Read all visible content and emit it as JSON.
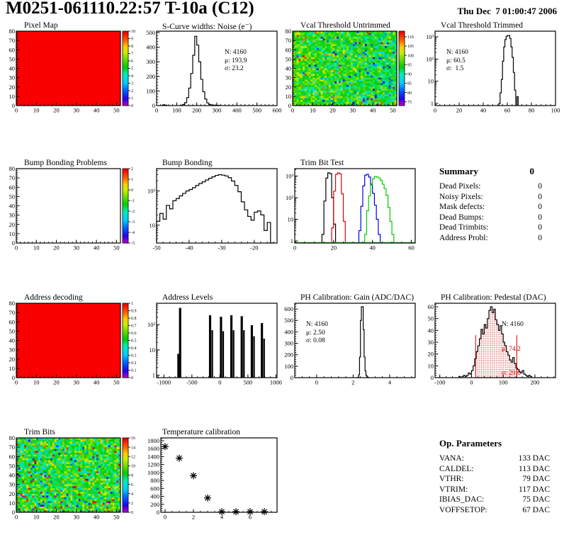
{
  "page": {
    "title": "M0251-061110.22:57 T-10a (C12)",
    "date": "Thu Dec  7 01:00:47 2006"
  },
  "summary": {
    "title": "Summary",
    "value": "0",
    "rows": [
      {
        "label": "Dead Pixels:",
        "value": "0"
      },
      {
        "label": "Noisy Pixels:",
        "value": "0"
      },
      {
        "label": "Mask defects:",
        "value": "0"
      },
      {
        "label": "Dead Bumps:",
        "value": "0"
      },
      {
        "label": "Dead Trimbits:",
        "value": "0"
      },
      {
        "label": "Address Probl:",
        "value": "0"
      }
    ]
  },
  "op_params": {
    "title": "Op. Parameters",
    "rows": [
      {
        "label": "VANA:",
        "value": "133 DAC"
      },
      {
        "label": "CALDEL:",
        "value": "113 DAC"
      },
      {
        "label": "VTHR:",
        "value": "79 DAC"
      },
      {
        "label": "VTRIM:",
        "value": "117 DAC"
      },
      {
        "label": "IBIAS_DAC:",
        "value": "75 DAC"
      },
      {
        "label": "VOFFSETOP:",
        "value": "67 DAC"
      }
    ]
  },
  "chart_data": [
    {
      "title": "Pixel Map",
      "type": "heatmap",
      "x_range": [
        0,
        52
      ],
      "y_range": [
        0,
        80
      ],
      "xticks": [
        0,
        10,
        20,
        30,
        40,
        50
      ],
      "xminor": 2,
      "yticks": [
        0,
        10,
        20,
        30,
        40,
        50,
        60,
        70,
        80
      ],
      "yminor": 2,
      "uniform_color": "#fb0000",
      "colorbar": {
        "range": [
          0,
          10
        ],
        "ticks": [
          0,
          1,
          2,
          3,
          4,
          5,
          6,
          7,
          8,
          9,
          10
        ]
      }
    },
    {
      "title": "S-Curve widths: Noise (e⁻)",
      "type": "hist",
      "x_range": [
        0,
        600
      ],
      "y_range": [
        0,
        510
      ],
      "xticks": [
        0,
        100,
        200,
        300,
        400,
        500,
        600
      ],
      "xminor": 20,
      "yticks": [
        0,
        100,
        200,
        300,
        400,
        500
      ],
      "yminor": 20,
      "bin_width": 10,
      "bins": [
        [
          30,
          5
        ],
        [
          40,
          3
        ],
        [
          120,
          2
        ],
        [
          130,
          8
        ],
        [
          140,
          20
        ],
        [
          150,
          55
        ],
        [
          160,
          120
        ],
        [
          170,
          220
        ],
        [
          180,
          345
        ],
        [
          190,
          475
        ],
        [
          200,
          415
        ],
        [
          210,
          300
        ],
        [
          220,
          180
        ],
        [
          230,
          95
        ],
        [
          240,
          45
        ],
        [
          250,
          18
        ],
        [
          260,
          8
        ],
        [
          270,
          4
        ],
        [
          280,
          2
        ],
        [
          290,
          3
        ],
        [
          300,
          2
        ],
        [
          310,
          1
        ]
      ],
      "stats": [
        "N: 4160",
        "μ: 193.9",
        "σ: 23.2"
      ]
    },
    {
      "title": "Vcal Threshold Untrimmed",
      "type": "heatmap",
      "x_range": [
        0,
        52
      ],
      "y_range": [
        0,
        80
      ],
      "xticks": [
        0,
        10,
        20,
        30,
        40,
        50
      ],
      "xminor": 2,
      "yticks": [
        0,
        10,
        20,
        30,
        40,
        50,
        60,
        70,
        80
      ],
      "yminor": 2,
      "noise": {
        "seed": 7,
        "base": 96,
        "sd": 3.5,
        "xslope": -3,
        "p_low": 0.05,
        "low": [
          -20,
          -8
        ],
        "grad_low": true,
        "p_high": 0.035,
        "high": [
          6,
          14
        ],
        "range": [
          73,
          113
        ]
      },
      "colorbar": {
        "range": [
          73,
          113
        ],
        "ticks": [
          75,
          80,
          85,
          90,
          95,
          100,
          105,
          110
        ]
      }
    },
    {
      "title": "Vcal Threshold Trimmed",
      "type": "hist",
      "x_range": [
        0,
        100
      ],
      "ylog": [
        0.8,
        1800
      ],
      "xticks": [
        0,
        20,
        40,
        60,
        80,
        100
      ],
      "xminor": 4,
      "bin_width": 1,
      "bins": [
        [
          53,
          1
        ],
        [
          54,
          3
        ],
        [
          55,
          12
        ],
        [
          56,
          80
        ],
        [
          57,
          350
        ],
        [
          58,
          750
        ],
        [
          59,
          1050
        ],
        [
          60,
          1150
        ],
        [
          61,
          1150
        ],
        [
          62,
          850
        ],
        [
          63,
          350
        ],
        [
          64,
          120
        ],
        [
          65,
          25
        ],
        [
          66,
          4
        ],
        [
          68,
          2
        ]
      ],
      "stats": [
        "N: 4160",
        "μ: 60.5",
        "σ:  1.5"
      ]
    },
    {
      "title": "Bump Bonding Problems",
      "type": "heatmap",
      "x_range": [
        0,
        52
      ],
      "y_range": [
        0,
        80
      ],
      "xticks": [
        0,
        10,
        20,
        30,
        40,
        50
      ],
      "xminor": 2,
      "yticks": [
        0,
        10,
        20,
        30,
        40,
        50,
        60,
        70,
        80
      ],
      "yminor": 2,
      "uniform_color": "#ffffff",
      "colorbar": {
        "range": [
          -5,
          2
        ],
        "ticks": [
          -5,
          -4,
          -3,
          -2,
          -1,
          0,
          1,
          2
        ]
      }
    },
    {
      "title": "Bump Bonding",
      "type": "hist",
      "x_range": [
        -50,
        -13
      ],
      "ylog": [
        3,
        450
      ],
      "xticks": [
        -50,
        -40,
        -30,
        -20
      ],
      "xminor": 2,
      "bin_width": 1,
      "bins": [
        [
          -50,
          13
        ],
        [
          -49,
          22
        ],
        [
          -48,
          15
        ],
        [
          -47,
          38
        ],
        [
          -46,
          30
        ],
        [
          -45,
          52
        ],
        [
          -44,
          60
        ],
        [
          -43,
          72
        ],
        [
          -42,
          85
        ],
        [
          -41,
          100
        ],
        [
          -40,
          110
        ],
        [
          -39,
          125
        ],
        [
          -38,
          145
        ],
        [
          -37,
          165
        ],
        [
          -36,
          185
        ],
        [
          -35,
          210
        ],
        [
          -34,
          235
        ],
        [
          -33,
          260
        ],
        [
          -32,
          285
        ],
        [
          -31,
          300
        ],
        [
          -30,
          290
        ],
        [
          -29,
          275
        ],
        [
          -28,
          245
        ],
        [
          -27,
          195
        ],
        [
          -26,
          145
        ],
        [
          -25,
          95
        ],
        [
          -24,
          48
        ],
        [
          -23,
          28
        ],
        [
          -22,
          18
        ],
        [
          -21,
          14
        ],
        [
          -20,
          24
        ],
        [
          -19,
          26
        ],
        [
          -18,
          20
        ],
        [
          -17,
          7
        ],
        [
          -16,
          12
        ],
        [
          -15,
          3
        ]
      ]
    },
    {
      "title": "Trim Bit Test",
      "type": "hist",
      "x_range": [
        0,
        62
      ],
      "ylog": [
        0.8,
        2200
      ],
      "xticks": [
        0,
        20,
        40,
        60
      ],
      "xminor": 5,
      "bin_width": 1,
      "series": [
        {
          "color": "#000000",
          "bins": [
            [
              14,
              2
            ],
            [
              15,
              70
            ],
            [
              16,
              800
            ],
            [
              17,
              1400
            ],
            [
              18,
              1300
            ],
            [
              19,
              100
            ],
            [
              20,
              6
            ]
          ]
        },
        {
          "color": "#e60000",
          "bins": [
            [
              19,
              4
            ],
            [
              20,
              200
            ],
            [
              21,
              1200
            ],
            [
              22,
              1400
            ],
            [
              23,
              1250
            ],
            [
              24,
              150
            ],
            [
              25,
              8
            ]
          ]
        },
        {
          "color": "#0000e6",
          "bins": [
            [
              33,
              3
            ],
            [
              34,
              40
            ],
            [
              35,
              350
            ],
            [
              36,
              1100
            ],
            [
              37,
              1200
            ],
            [
              38,
              900
            ],
            [
              39,
              420
            ],
            [
              40,
              160
            ],
            [
              41,
              45
            ],
            [
              42,
              10
            ],
            [
              43,
              2
            ]
          ]
        },
        {
          "color": "#00cc00",
          "baseline": true,
          "bins": [
            [
              36,
              2
            ],
            [
              37,
              25
            ],
            [
              38,
              120
            ],
            [
              39,
              380
            ],
            [
              40,
              750
            ],
            [
              41,
              950
            ],
            [
              42,
              900
            ],
            [
              43,
              820
            ],
            [
              44,
              640
            ],
            [
              45,
              420
            ],
            [
              46,
              260
            ],
            [
              47,
              130
            ],
            [
              48,
              35
            ],
            [
              49,
              8
            ],
            [
              50,
              2
            ]
          ]
        }
      ]
    },
    {
      "title": "Address decoding",
      "type": "heatmap",
      "x_range": [
        0,
        52
      ],
      "y_range": [
        0,
        80
      ],
      "xticks": [
        0,
        10,
        20,
        30,
        40,
        50
      ],
      "xminor": 2,
      "yticks": [
        0,
        10,
        20,
        30,
        40,
        50,
        60,
        70,
        80
      ],
      "yminor": 2,
      "uniform_color": "#fb0000",
      "colorbar": {
        "range": [
          0,
          1
        ],
        "ticks": [
          0,
          0.1,
          0.2,
          0.3,
          0.4,
          0.5,
          0.6,
          0.7,
          0.8,
          0.9,
          1
        ]
      }
    },
    {
      "title": "Address Levels",
      "type": "bars",
      "x_range": [
        -1130,
        1020
      ],
      "ylog": [
        0.8,
        700
      ],
      "xticks": [
        -1000,
        -500,
        0,
        500,
        1000
      ],
      "xminor": 100,
      "bars": [
        [
          -760,
          30,
          7
        ],
        [
          -730,
          40,
          460
        ],
        [
          -195,
          40,
          235
        ],
        [
          -150,
          28,
          60
        ],
        [
          0,
          40,
          205
        ],
        [
          45,
          28,
          55
        ],
        [
          185,
          40,
          235
        ],
        [
          230,
          28,
          60
        ],
        [
          370,
          40,
          215
        ],
        [
          415,
          28,
          60
        ],
        [
          550,
          40,
          95
        ],
        [
          595,
          28,
          35
        ],
        [
          730,
          40,
          115
        ],
        [
          775,
          28,
          28
        ]
      ]
    },
    {
      "title": "PH Calibration: Gain (ADC/DAC)",
      "type": "hist",
      "x_range": [
        -1.2,
        5.4
      ],
      "y_range": [
        0,
        650
      ],
      "xticks": [
        0,
        2,
        4
      ],
      "xminor": 0.4,
      "yticks": [
        0,
        100,
        200,
        300,
        400,
        500,
        600
      ],
      "yminor": 20,
      "bin_width": 0.05,
      "bins": [
        [
          2.25,
          3
        ],
        [
          2.3,
          25
        ],
        [
          2.35,
          180
        ],
        [
          2.4,
          500
        ],
        [
          2.45,
          620
        ],
        [
          2.5,
          620
        ],
        [
          2.55,
          420
        ],
        [
          2.6,
          180
        ],
        [
          2.65,
          60
        ],
        [
          2.7,
          20
        ],
        [
          2.75,
          6
        ],
        [
          2.8,
          2
        ]
      ],
      "stats": [
        "N: 4160",
        "μ: 2.50",
        "σ: 0.08"
      ]
    },
    {
      "title": "PH Calibration: Pedestal (DAC)",
      "type": "hist",
      "x_range": [
        -115,
        265
      ],
      "y_range": [
        0,
        63
      ],
      "xticks": [
        -100,
        0,
        100,
        200
      ],
      "xminor": 20,
      "yticks": [
        0,
        10,
        20,
        30,
        40,
        50,
        60
      ],
      "yminor": 2,
      "bin_width": 5,
      "bins": [
        [
          -40,
          1
        ],
        [
          -30,
          1
        ],
        [
          -25,
          2
        ],
        [
          -20,
          1
        ],
        [
          -15,
          2
        ],
        [
          -10,
          4
        ],
        [
          -5,
          3
        ],
        [
          0,
          6
        ],
        [
          5,
          10
        ],
        [
          10,
          16
        ],
        [
          15,
          22
        ],
        [
          20,
          27
        ],
        [
          25,
          33
        ],
        [
          30,
          41
        ],
        [
          35,
          37
        ],
        [
          40,
          45
        ],
        [
          45,
          42
        ],
        [
          50,
          50
        ],
        [
          55,
          57
        ],
        [
          60,
          60
        ],
        [
          65,
          55
        ],
        [
          70,
          58
        ],
        [
          75,
          49
        ],
        [
          80,
          45
        ],
        [
          85,
          40
        ],
        [
          90,
          44
        ],
        [
          95,
          37
        ],
        [
          100,
          30
        ],
        [
          105,
          27
        ],
        [
          110,
          22
        ],
        [
          115,
          19
        ],
        [
          120,
          15
        ],
        [
          125,
          13
        ],
        [
          130,
          17
        ],
        [
          135,
          12
        ],
        [
          140,
          8
        ],
        [
          145,
          7
        ],
        [
          150,
          5
        ],
        [
          155,
          4
        ],
        [
          160,
          6
        ],
        [
          165,
          3
        ],
        [
          170,
          2
        ],
        [
          175,
          1
        ],
        [
          180,
          2
        ],
        [
          185,
          1
        ]
      ],
      "fill_region": [
        13,
        143
      ],
      "red_lines": [
        [
          13,
          36
        ],
        [
          143,
          36
        ]
      ],
      "stats": [
        "N: 4160",
        "μ: 74.2",
        "σ: 29.6"
      ]
    },
    {
      "title": "Trim Bits",
      "type": "heatmap",
      "x_range": [
        0,
        52
      ],
      "y_range": [
        0,
        80
      ],
      "xticks": [
        0,
        10,
        20,
        30,
        40,
        50
      ],
      "xminor": 2,
      "yticks": [
        0,
        10,
        20,
        30,
        40,
        50,
        60,
        70,
        80
      ],
      "yminor": 2,
      "noise": {
        "seed": 21,
        "base": 8.2,
        "sd": 1.7,
        "xslope": 0.6,
        "p_low": 0.04,
        "low": [
          -7,
          -4
        ],
        "p_high": 0.05,
        "high": [
          3,
          8
        ],
        "range": [
          0,
          16
        ]
      },
      "colorbar": {
        "range": [
          0,
          16
        ],
        "ticks": [
          0,
          2,
          4,
          6,
          8,
          10,
          12,
          14,
          16
        ]
      }
    },
    {
      "title": "Temperature calibration",
      "type": "scatter",
      "x_range": [
        -0.3,
        7.9
      ],
      "y_range": [
        0,
        1870
      ],
      "xticks": [
        0,
        2,
        4,
        6
      ],
      "xminor": 0.5,
      "yticks": [
        0,
        200,
        400,
        600,
        800,
        1000,
        1200,
        1400,
        1600,
        1800
      ],
      "yminor": 50,
      "points": [
        [
          0,
          1650
        ],
        [
          1,
          1360
        ],
        [
          2,
          920
        ],
        [
          3,
          360
        ],
        [
          4,
          15
        ],
        [
          5,
          15
        ],
        [
          6,
          15
        ],
        [
          7,
          15
        ]
      ],
      "fx0": 22
    }
  ]
}
